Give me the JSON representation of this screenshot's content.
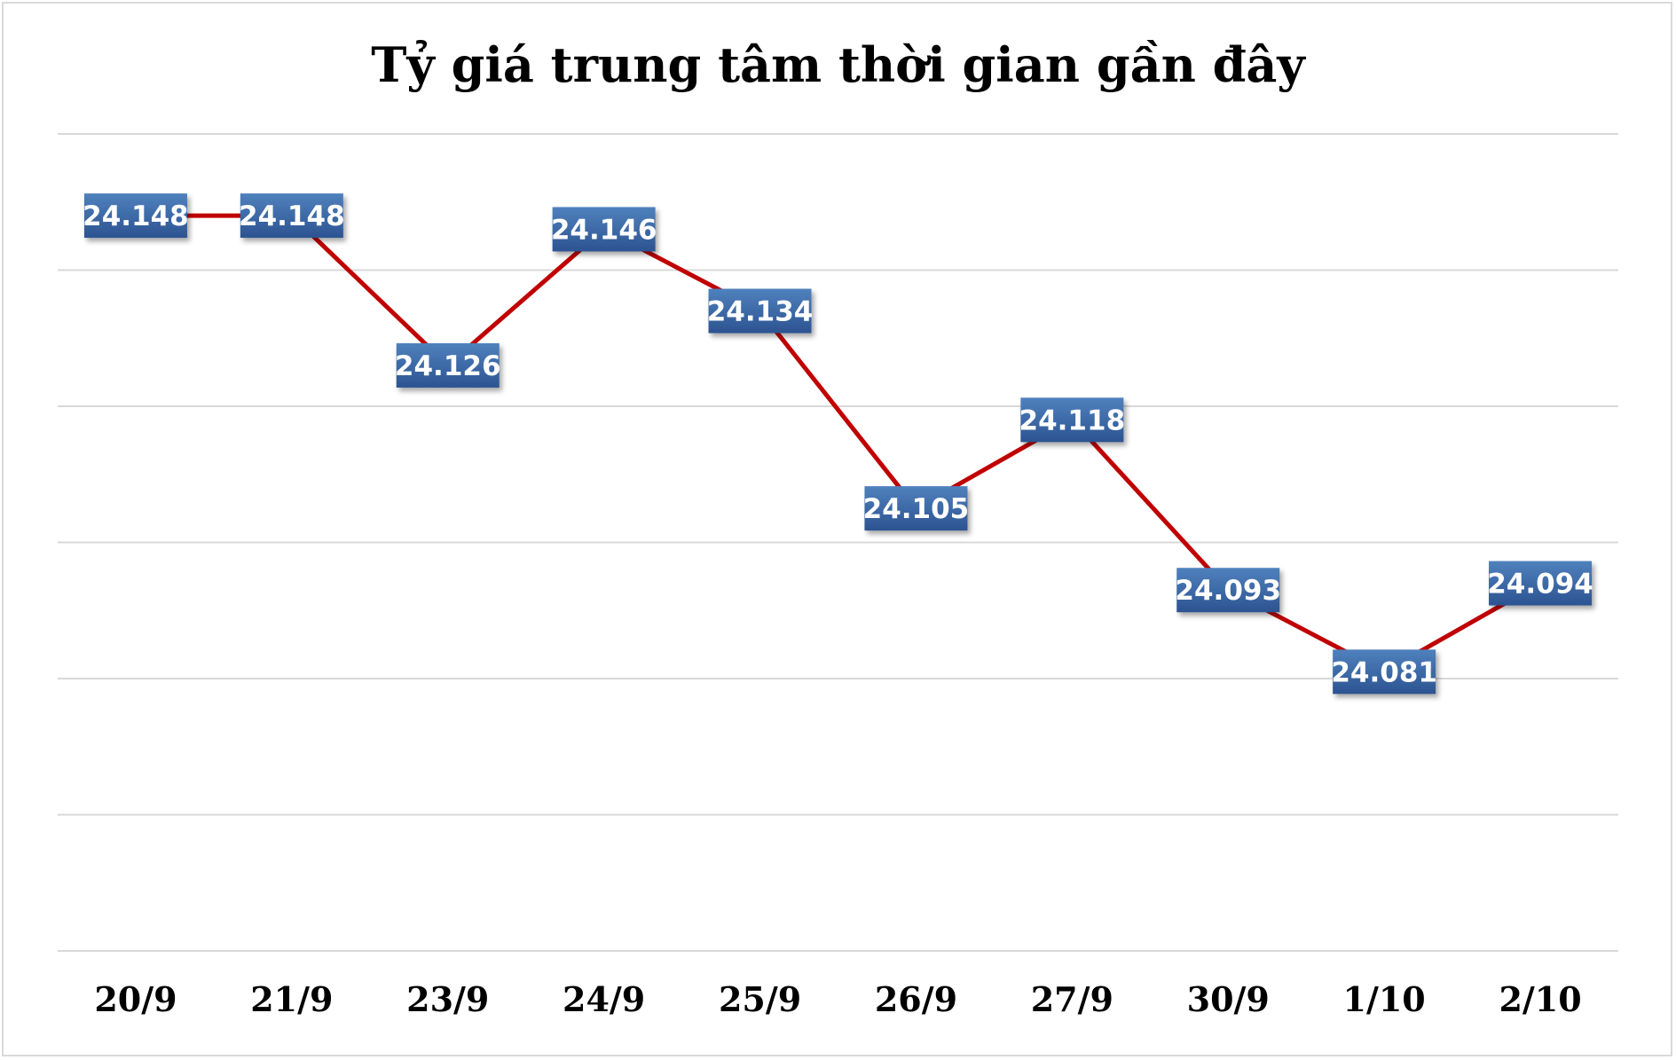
{
  "chart_data": {
    "type": "line",
    "title": "Tỷ giá trung tâm thời gian gần đây",
    "xlabel": "",
    "ylabel": "",
    "categories": [
      "20/9",
      "21/9",
      "23/9",
      "24/9",
      "25/9",
      "26/9",
      "27/9",
      "30/9",
      "1/10",
      "2/10"
    ],
    "series": [
      {
        "values": [
          24148,
          24148,
          24126,
          24146,
          24134,
          24105,
          24118,
          24093,
          24081,
          24094
        ],
        "labels": [
          "24.148",
          "24.148",
          "24.126",
          "24.146",
          "24.134",
          "24.105",
          "24.118",
          "24.093",
          "24.081",
          "24.094"
        ]
      }
    ],
    "ylim": [
      24040,
      24160
    ],
    "grid": true,
    "legend": "none",
    "colors": {
      "line": "#c00000",
      "label_box_top": "#4f81bd",
      "label_box_bottom": "#2c5391",
      "label_text": "#ffffff",
      "gridline": "#d9d9d9"
    }
  }
}
